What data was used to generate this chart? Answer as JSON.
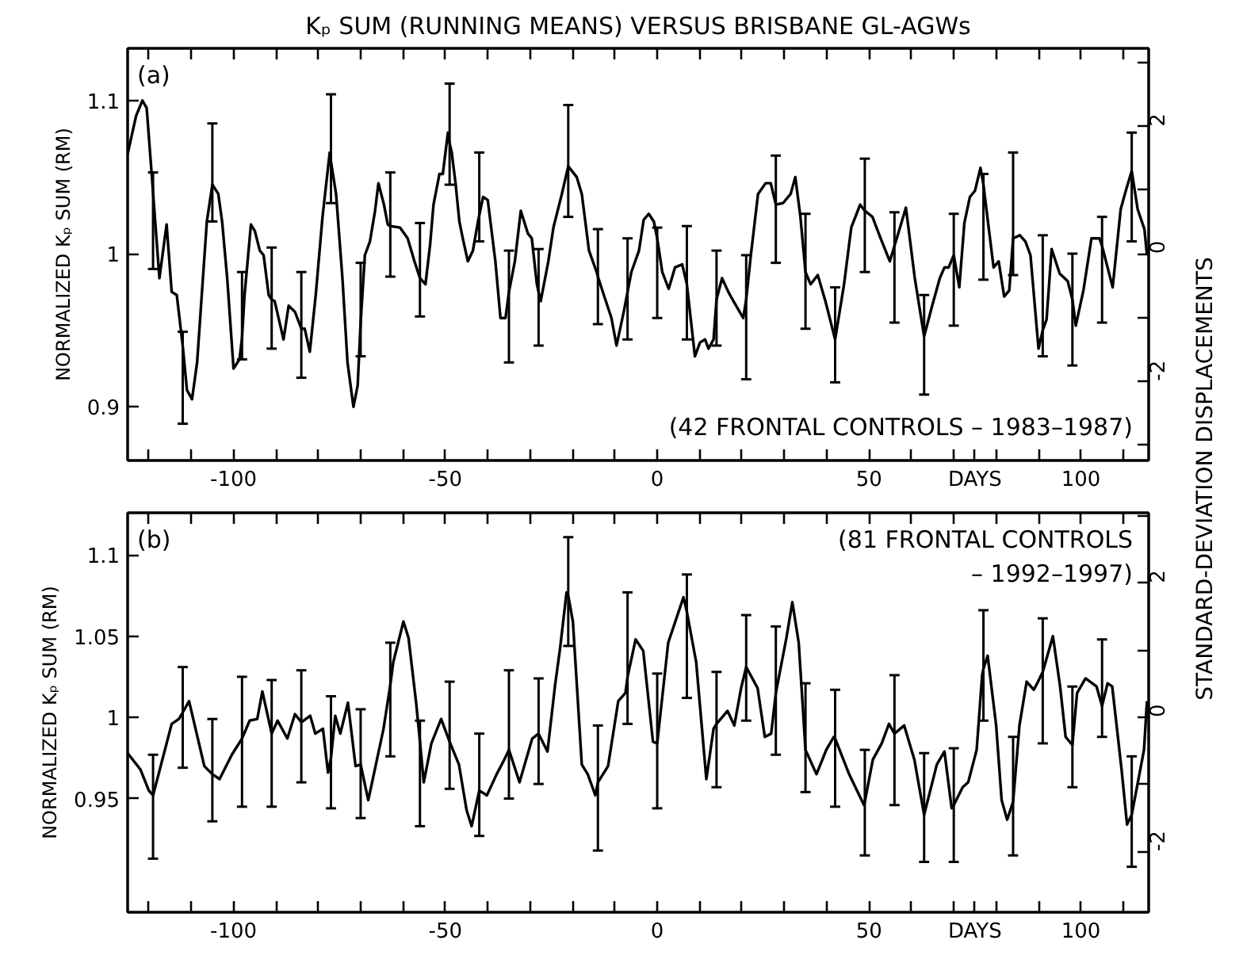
{
  "chart_data": [
    {
      "type": "line",
      "title": "Kₚ SUM (RUNNING MEANS) VERSUS BRISBANE GL-AGWs",
      "xlabel": "DAYS",
      "ylabel": "NORMALIZED Kₚ SUM (RM)",
      "y2label": "STANDARD-DEVIATION DISPLACEMENTS",
      "annotations": [
        "(a)",
        "(42 FRONTAL CONTROLS – 1983–1987)"
      ],
      "xlim": [
        -125,
        116
      ],
      "ylim": [
        0.865,
        1.134
      ],
      "y2lim": [
        -3.25,
        3.23
      ],
      "xticks": [
        {
          "value": -120,
          "label": null
        },
        {
          "value": -110,
          "label": null
        },
        -100,
        {
          "value": -90,
          "label": null
        },
        {
          "value": -80,
          "label": null
        },
        {
          "value": -70,
          "label": null
        },
        {
          "value": -60,
          "label": null
        },
        -50,
        {
          "value": -40,
          "label": null
        },
        {
          "value": -30,
          "label": null
        },
        {
          "value": -20,
          "label": null
        },
        {
          "value": -10,
          "label": null
        },
        0,
        {
          "value": 10,
          "label": null
        },
        {
          "value": 20,
          "label": null
        },
        {
          "value": 30,
          "label": null
        },
        {
          "value": 40,
          "label": null
        },
        50,
        {
          "value": 60,
          "label": null
        },
        {
          "value": 70,
          "label": null
        },
        {
          "value": 80,
          "label": null
        },
        {
          "value": 90,
          "label": null
        },
        100,
        {
          "value": 110,
          "label": null
        }
      ],
      "yticks": [
        0.9,
        1,
        1.1
      ],
      "y2ticks": [
        {
          "value": -3,
          "label": null
        },
        -2,
        {
          "value": -1,
          "label": null
        },
        0,
        {
          "value": 1,
          "label": null
        },
        2,
        {
          "value": 3,
          "label": null
        }
      ],
      "series": [
        {
          "color": "#000000",
          "x": [
            -125,
            -123,
            -121.5,
            -120.5,
            -119,
            -117.5,
            -115.8,
            -114.6,
            -113.4,
            -112,
            -111,
            -109.8,
            -108.6,
            -107.5,
            -106.3,
            -105,
            -103.6,
            -102.7,
            -101.5,
            -100,
            -98.6,
            -98,
            -97.4,
            -95.9,
            -95,
            -93.8,
            -92.9,
            -91.7,
            -91,
            -90.3,
            -88.2,
            -87,
            -85.5,
            -84,
            -83.2,
            -82,
            -80.6,
            -79,
            -77.3,
            -77,
            -75.8,
            -74.3,
            -73.1,
            -71.7,
            -70.7,
            -70,
            -69,
            -67.8,
            -66.6,
            -65.8,
            -64.5,
            -63.6,
            -63,
            -60.7,
            -58.9,
            -57.3,
            -56,
            -54.7,
            -53.6,
            -52.8,
            -51.4,
            -50.6,
            -49.4,
            -49,
            -48.5,
            -47.6,
            -46.7,
            -45.9,
            -44.7,
            -43.5,
            -42.3,
            -42,
            -41.1,
            -40,
            -38.2,
            -37,
            -35.8,
            -35,
            -33.6,
            -32.2,
            -30.5,
            -29.6,
            -28.4,
            -28,
            -27.5,
            -25.7,
            -24.5,
            -22.5,
            -21,
            -19,
            -17.8,
            -16.1,
            -14.3,
            -14,
            -12.6,
            -10.8,
            -9.6,
            -7.9,
            -7,
            -6.1,
            -4.3,
            -3.2,
            -2,
            -0.8,
            0,
            1.2,
            2.7,
            4.2,
            5.9,
            7,
            8.9,
            10.1,
            11.3,
            12.1,
            13.3,
            14,
            15.3,
            16.8,
            18,
            20.3,
            21,
            22.1,
            23.8,
            25.6,
            26.8,
            28,
            29.7,
            31.5,
            32.6,
            33.8,
            35,
            36.2,
            37.9,
            39.7,
            42,
            44.1,
            45.8,
            47.9,
            49,
            50.8,
            52.6,
            54.9,
            56,
            57.3,
            58.7,
            60.8,
            63,
            64.9,
            66.7,
            67.8,
            68.8,
            70,
            71.3,
            72.5,
            73.8,
            75,
            76.3,
            77,
            78.1,
            79.4,
            80.6,
            81.9,
            83.1,
            84,
            85.6,
            86.9,
            88.1,
            90,
            91,
            91.9,
            93.1,
            95,
            96.9,
            98,
            98.8,
            100.6,
            102.5,
            104.4,
            105,
            106.3,
            107.5,
            109.4,
            110.6,
            112,
            113.4,
            115,
            115.6
          ],
          "values": [
            1.065,
            1.09,
            1.1,
            1.095,
            1.04,
            0.984,
            1.019,
            0.975,
            0.973,
            0.94,
            0.911,
            0.905,
            0.929,
            0.973,
            1.021,
            1.045,
            1.039,
            1.021,
            0.984,
            0.925,
            0.931,
            0.945,
            0.973,
            1.019,
            1.015,
            1.002,
            0.999,
            0.973,
            0.97,
            0.969,
            0.944,
            0.966,
            0.962,
            0.951,
            0.951,
            0.936,
            0.973,
            1.024,
            1.066,
            1.06,
            1.039,
            0.984,
            0.929,
            0.9,
            0.914,
            0.955,
            0.999,
            1.008,
            1.028,
            1.046,
            1.032,
            1.019,
            1.018,
            1.017,
            1.01,
            0.995,
            0.984,
            0.98,
            1.006,
            1.032,
            1.052,
            1.052,
            1.079,
            1.072,
            1.066,
            1.046,
            1.021,
            1.01,
            0.995,
            1.002,
            1.021,
            1.025,
            1.037,
            1.035,
            0.995,
            0.958,
            0.958,
            0.975,
            0.995,
            1.028,
            1.013,
            1.01,
            0.98,
            0.975,
            0.969,
            0.995,
            1.017,
            1.039,
            1.057,
            1.05,
            1.039,
            1.002,
            0.988,
            0.985,
            0.973,
            0.958,
            0.94,
            0.962,
            0.975,
            0.988,
            1.002,
            1.022,
            1.026,
            1.021,
            1.01,
            0.988,
            0.977,
            0.991,
            0.993,
            0.98,
            0.933,
            0.942,
            0.944,
            0.938,
            0.944,
            0.97,
            0.984,
            0.975,
            0.969,
            0.958,
            0.97,
            0.999,
            1.039,
            1.046,
            1.046,
            1.032,
            1.033,
            1.039,
            1.05,
            1.024,
            0.988,
            0.98,
            0.986,
            0.969,
            0.944,
            0.98,
            1.017,
            1.032,
            1.028,
            1.024,
            1.011,
            0.995,
            1.005,
            1.017,
            1.03,
            0.984,
            0.946,
            0.966,
            0.984,
            0.991,
            0.991,
            0.999,
            0.978,
            1.02,
            1.037,
            1.041,
            1.056,
            1.045,
            1.02,
            0.991,
            0.995,
            0.972,
            0.976,
            1.01,
            1.012,
            1.008,
            0.999,
            0.938,
            0.95,
            0.957,
            1.003,
            0.987,
            0.982,
            0.97,
            0.953,
            0.976,
            1.01,
            1.01,
            1.005,
            0.991,
            0.978,
            1.029,
            1.041,
            1.054,
            1.029,
            1.016,
            0.999
          ],
          "errors": [
            null,
            null,
            null,
            null,
            [
              0.99,
              1.053
            ],
            null,
            null,
            null,
            null,
            [
              0.889,
              0.949
            ],
            null,
            null,
            null,
            null,
            null,
            [
              1.021,
              1.085
            ],
            null,
            null,
            null,
            null,
            null,
            [
              0.931,
              0.988
            ],
            null,
            null,
            null,
            null,
            null,
            null,
            [
              0.938,
              1.004
            ],
            null,
            null,
            null,
            null,
            [
              0.919,
              0.988
            ],
            null,
            null,
            null,
            null,
            null,
            [
              1.033,
              1.104
            ],
            null,
            null,
            null,
            null,
            null,
            [
              0.933,
              0.994
            ],
            null,
            null,
            null,
            null,
            null,
            null,
            [
              0.985,
              1.053
            ],
            null,
            null,
            null,
            [
              0.959,
              1.02
            ],
            null,
            null,
            null,
            null,
            null,
            null,
            [
              1.045,
              1.111
            ],
            null,
            null,
            null,
            null,
            null,
            null,
            null,
            [
              1.008,
              1.066
            ],
            null,
            null,
            null,
            null,
            null,
            [
              0.929,
              1.002
            ],
            null,
            null,
            null,
            null,
            null,
            [
              0.94,
              1.003
            ],
            null,
            null,
            null,
            null,
            [
              1.024,
              1.097
            ],
            null,
            null,
            null,
            null,
            [
              0.954,
              1.016
            ],
            null,
            null,
            null,
            null,
            [
              0.944,
              1.01
            ],
            null,
            null,
            null,
            null,
            null,
            [
              0.958,
              1.017
            ],
            null,
            null,
            null,
            null,
            [
              0.944,
              1.018
            ],
            null,
            null,
            null,
            null,
            null,
            [
              0.94,
              1.002
            ],
            null,
            null,
            null,
            null,
            [
              0.918,
              0.999
            ],
            null,
            null,
            null,
            null,
            [
              0.994,
              1.064
            ],
            null,
            null,
            null,
            null,
            [
              0.951,
              1.026
            ],
            null,
            null,
            null,
            [
              0.916,
              0.978
            ],
            null,
            null,
            null,
            [
              0.988,
              1.062
            ],
            null,
            null,
            null,
            [
              0.955,
              1.027
            ],
            null,
            null,
            null,
            [
              0.908,
              0.973
            ],
            null,
            null,
            null,
            null,
            [
              0.953,
              1.026
            ],
            null,
            null,
            null,
            null,
            null,
            [
              0.983,
              1.052
            ],
            null,
            null,
            null,
            null,
            null,
            [
              0.986,
              1.066
            ],
            null,
            null,
            null,
            null,
            [
              0.933,
              1.012
            ],
            null,
            null,
            null,
            null,
            [
              0.927,
              1.0
            ],
            null,
            null,
            null,
            null,
            [
              0.955,
              1.024
            ],
            null,
            null,
            null,
            null,
            [
              1.008,
              1.079
            ],
            null,
            null,
            null
          ]
        }
      ]
    },
    {
      "type": "line",
      "xlabel": "DAYS",
      "ylabel": "NORMALIZED Kₚ SUM (RM)",
      "annotations": [
        "(b)",
        "(81 FRONTAL CONTROLS\n– 1992–1997)"
      ],
      "xlim": [
        -125,
        116
      ],
      "ylim": [
        0.88,
        1.126
      ],
      "y2lim": [
        -2.91,
        3.05
      ],
      "xticks": [
        {
          "value": -120,
          "label": null
        },
        {
          "value": -110,
          "label": null
        },
        -100,
        {
          "value": -90,
          "label": null
        },
        {
          "value": -80,
          "label": null
        },
        {
          "value": -70,
          "label": null
        },
        {
          "value": -60,
          "label": null
        },
        -50,
        {
          "value": -40,
          "label": null
        },
        {
          "value": -30,
          "label": null
        },
        {
          "value": -20,
          "label": null
        },
        {
          "value": -10,
          "label": null
        },
        0,
        {
          "value": 10,
          "label": null
        },
        {
          "value": 20,
          "label": null
        },
        {
          "value": 30,
          "label": null
        },
        {
          "value": 40,
          "label": null
        },
        50,
        {
          "value": 60,
          "label": null
        },
        {
          "value": 70,
          "label": null
        },
        {
          "value": 80,
          "label": null
        },
        {
          "value": 90,
          "label": null
        },
        100,
        {
          "value": 110,
          "label": null
        }
      ],
      "yticks": [
        0.95,
        1,
        1.05,
        1.1
      ],
      "y2ticks": [
        -2,
        {
          "value": -1,
          "label": null
        },
        0,
        {
          "value": 1,
          "label": null
        },
        2,
        {
          "value": 3,
          "label": null
        }
      ],
      "series": [
        {
          "color": "#000000",
          "x": [
            -125,
            -122,
            -120,
            -119,
            -114.6,
            -112.9,
            -112,
            -110.5,
            -108.7,
            -106.9,
            -105,
            -103.3,
            -100.4,
            -98,
            -96.2,
            -94.4,
            -93.2,
            -91,
            -89.6,
            -87.3,
            -85.5,
            -84,
            -81.9,
            -80.7,
            -78.9,
            -77.7,
            -77,
            -76,
            -74.8,
            -73,
            -71.2,
            -70,
            -68.2,
            -66.4,
            -64.6,
            -63,
            -62.3,
            -59.9,
            -58.7,
            -56.9,
            -56,
            -55.1,
            -53.3,
            -51,
            -49,
            -46.8,
            -45,
            -43.8,
            -42,
            -40.2,
            -37.9,
            -36.1,
            -35,
            -32.5,
            -29.5,
            -28,
            -25.9,
            -24.1,
            -22.9,
            -21.4,
            -21,
            -19.9,
            -17.8,
            -16.4,
            -14.6,
            -14,
            -11.6,
            -9.2,
            -7.5,
            -7,
            -5.1,
            -3.3,
            -1,
            0,
            2.6,
            6.2,
            7,
            9.2,
            11.6,
            13.3,
            14,
            16.6,
            18.2,
            19.8,
            21,
            23.7,
            25.4,
            26.9,
            28,
            30.5,
            31.9,
            33.4,
            35,
            37.6,
            39.9,
            41.7,
            42,
            45.3,
            48.8,
            49,
            50.9,
            53,
            54.7,
            56,
            58.3,
            60.7,
            63,
            66,
            67.8,
            69.5,
            70,
            72.1,
            73.4,
            75.4,
            76.7,
            77,
            78,
            80,
            81.3,
            82.6,
            84,
            85.5,
            87.2,
            88.9,
            89.9,
            91,
            93.4,
            95.1,
            96.4,
            98,
            99.1,
            101.1,
            103.7,
            105,
            106.3,
            107.4,
            109.6,
            110.9,
            112,
            114.9,
            115.6
          ],
          "values": [
            0.978,
            0.968,
            0.955,
            0.952,
            0.996,
            0.999,
            1.003,
            1.01,
            0.99,
            0.97,
            0.965,
            0.962,
            0.977,
            0.987,
            0.998,
            0.999,
            1.016,
            0.99,
            0.998,
            0.987,
            1.002,
            0.997,
            1.001,
            0.99,
            0.993,
            0.966,
            0.975,
            1.001,
            0.99,
            1.009,
            0.97,
            0.971,
            0.949,
            0.971,
            0.993,
            1.02,
            1.034,
            1.059,
            1.049,
            1.009,
            0.985,
            0.96,
            0.984,
            0.999,
            0.985,
            0.971,
            0.943,
            0.933,
            0.955,
            0.952,
            0.965,
            0.974,
            0.98,
            0.96,
            0.987,
            0.99,
            0.979,
            1.02,
            1.043,
            1.077,
            1.075,
            1.059,
            0.971,
            0.965,
            0.952,
            0.96,
            0.97,
            1.01,
            1.015,
            1.025,
            1.048,
            1.041,
            0.985,
            0.984,
            1.046,
            1.074,
            1.065,
            1.034,
            0.962,
            0.993,
            0.996,
            1.004,
            0.995,
            1.018,
            1.031,
            1.018,
            0.988,
            0.99,
            1.015,
            1.049,
            1.071,
            1.046,
            0.98,
            0.965,
            0.98,
            0.988,
            0.987,
            0.965,
            0.946,
            0.948,
            0.974,
            0.984,
            0.996,
            0.99,
            0.995,
            0.974,
            0.94,
            0.971,
            0.979,
            0.944,
            0.946,
            0.957,
            0.96,
            0.98,
            1.026,
            1.03,
            1.038,
            0.995,
            0.949,
            0.937,
            0.948,
            0.995,
            1.022,
            1.017,
            1.022,
            1.028,
            1.05,
            1.019,
            0.988,
            0.983,
            1.015,
            1.024,
            1.019,
            1.007,
            1.021,
            1.019,
            0.968,
            0.934,
            0.94,
            0.98,
            1.01
          ],
          "errors": [
            null,
            null,
            null,
            [
              0.913,
              0.977
            ],
            null,
            null,
            [
              0.969,
              1.031
            ],
            null,
            null,
            null,
            [
              0.936,
              0.999
            ],
            null,
            null,
            [
              0.945,
              1.025
            ],
            null,
            null,
            null,
            [
              0.945,
              1.023
            ],
            null,
            null,
            null,
            [
              0.96,
              1.029
            ],
            null,
            null,
            null,
            null,
            [
              0.944,
              1.013
            ],
            null,
            null,
            null,
            null,
            [
              0.938,
              1.005
            ],
            null,
            null,
            null,
            [
              0.976,
              1.046
            ],
            null,
            null,
            null,
            null,
            [
              0.933,
              0.998
            ],
            null,
            null,
            null,
            [
              0.956,
              1.022
            ],
            null,
            null,
            null,
            [
              0.927,
              0.99
            ],
            null,
            null,
            null,
            [
              0.95,
              1.029
            ],
            null,
            null,
            [
              0.959,
              1.024
            ],
            null,
            null,
            null,
            null,
            [
              1.044,
              1.111
            ],
            null,
            null,
            null,
            null,
            [
              0.918,
              0.995
            ],
            null,
            null,
            null,
            [
              0.996,
              1.077
            ],
            null,
            null,
            null,
            [
              0.944,
              1.027
            ],
            null,
            null,
            [
              1.012,
              1.088
            ],
            null,
            null,
            null,
            [
              0.957,
              1.028
            ],
            null,
            null,
            null,
            [
              0.998,
              1.063
            ],
            null,
            null,
            null,
            [
              0.977,
              1.056
            ],
            null,
            null,
            null,
            [
              0.954,
              1.021
            ],
            null,
            null,
            null,
            [
              0.945,
              1.017
            ],
            null,
            null,
            [
              0.915,
              0.98
            ],
            null,
            null,
            null,
            [
              0.946,
              1.026
            ],
            null,
            null,
            [
              0.911,
              0.978
            ],
            null,
            null,
            null,
            [
              0.911,
              0.981
            ],
            null,
            null,
            null,
            null,
            [
              0.998,
              1.066
            ],
            null,
            null,
            null,
            null,
            [
              0.915,
              0.988
            ],
            null,
            null,
            null,
            null,
            [
              0.984,
              1.061
            ],
            null,
            null,
            null,
            [
              0.957,
              1.019
            ],
            null,
            null,
            null,
            [
              0.988,
              1.048
            ],
            null,
            null,
            null,
            null,
            [
              0.908,
              0.976
            ],
            null,
            null
          ]
        }
      ]
    }
  ]
}
